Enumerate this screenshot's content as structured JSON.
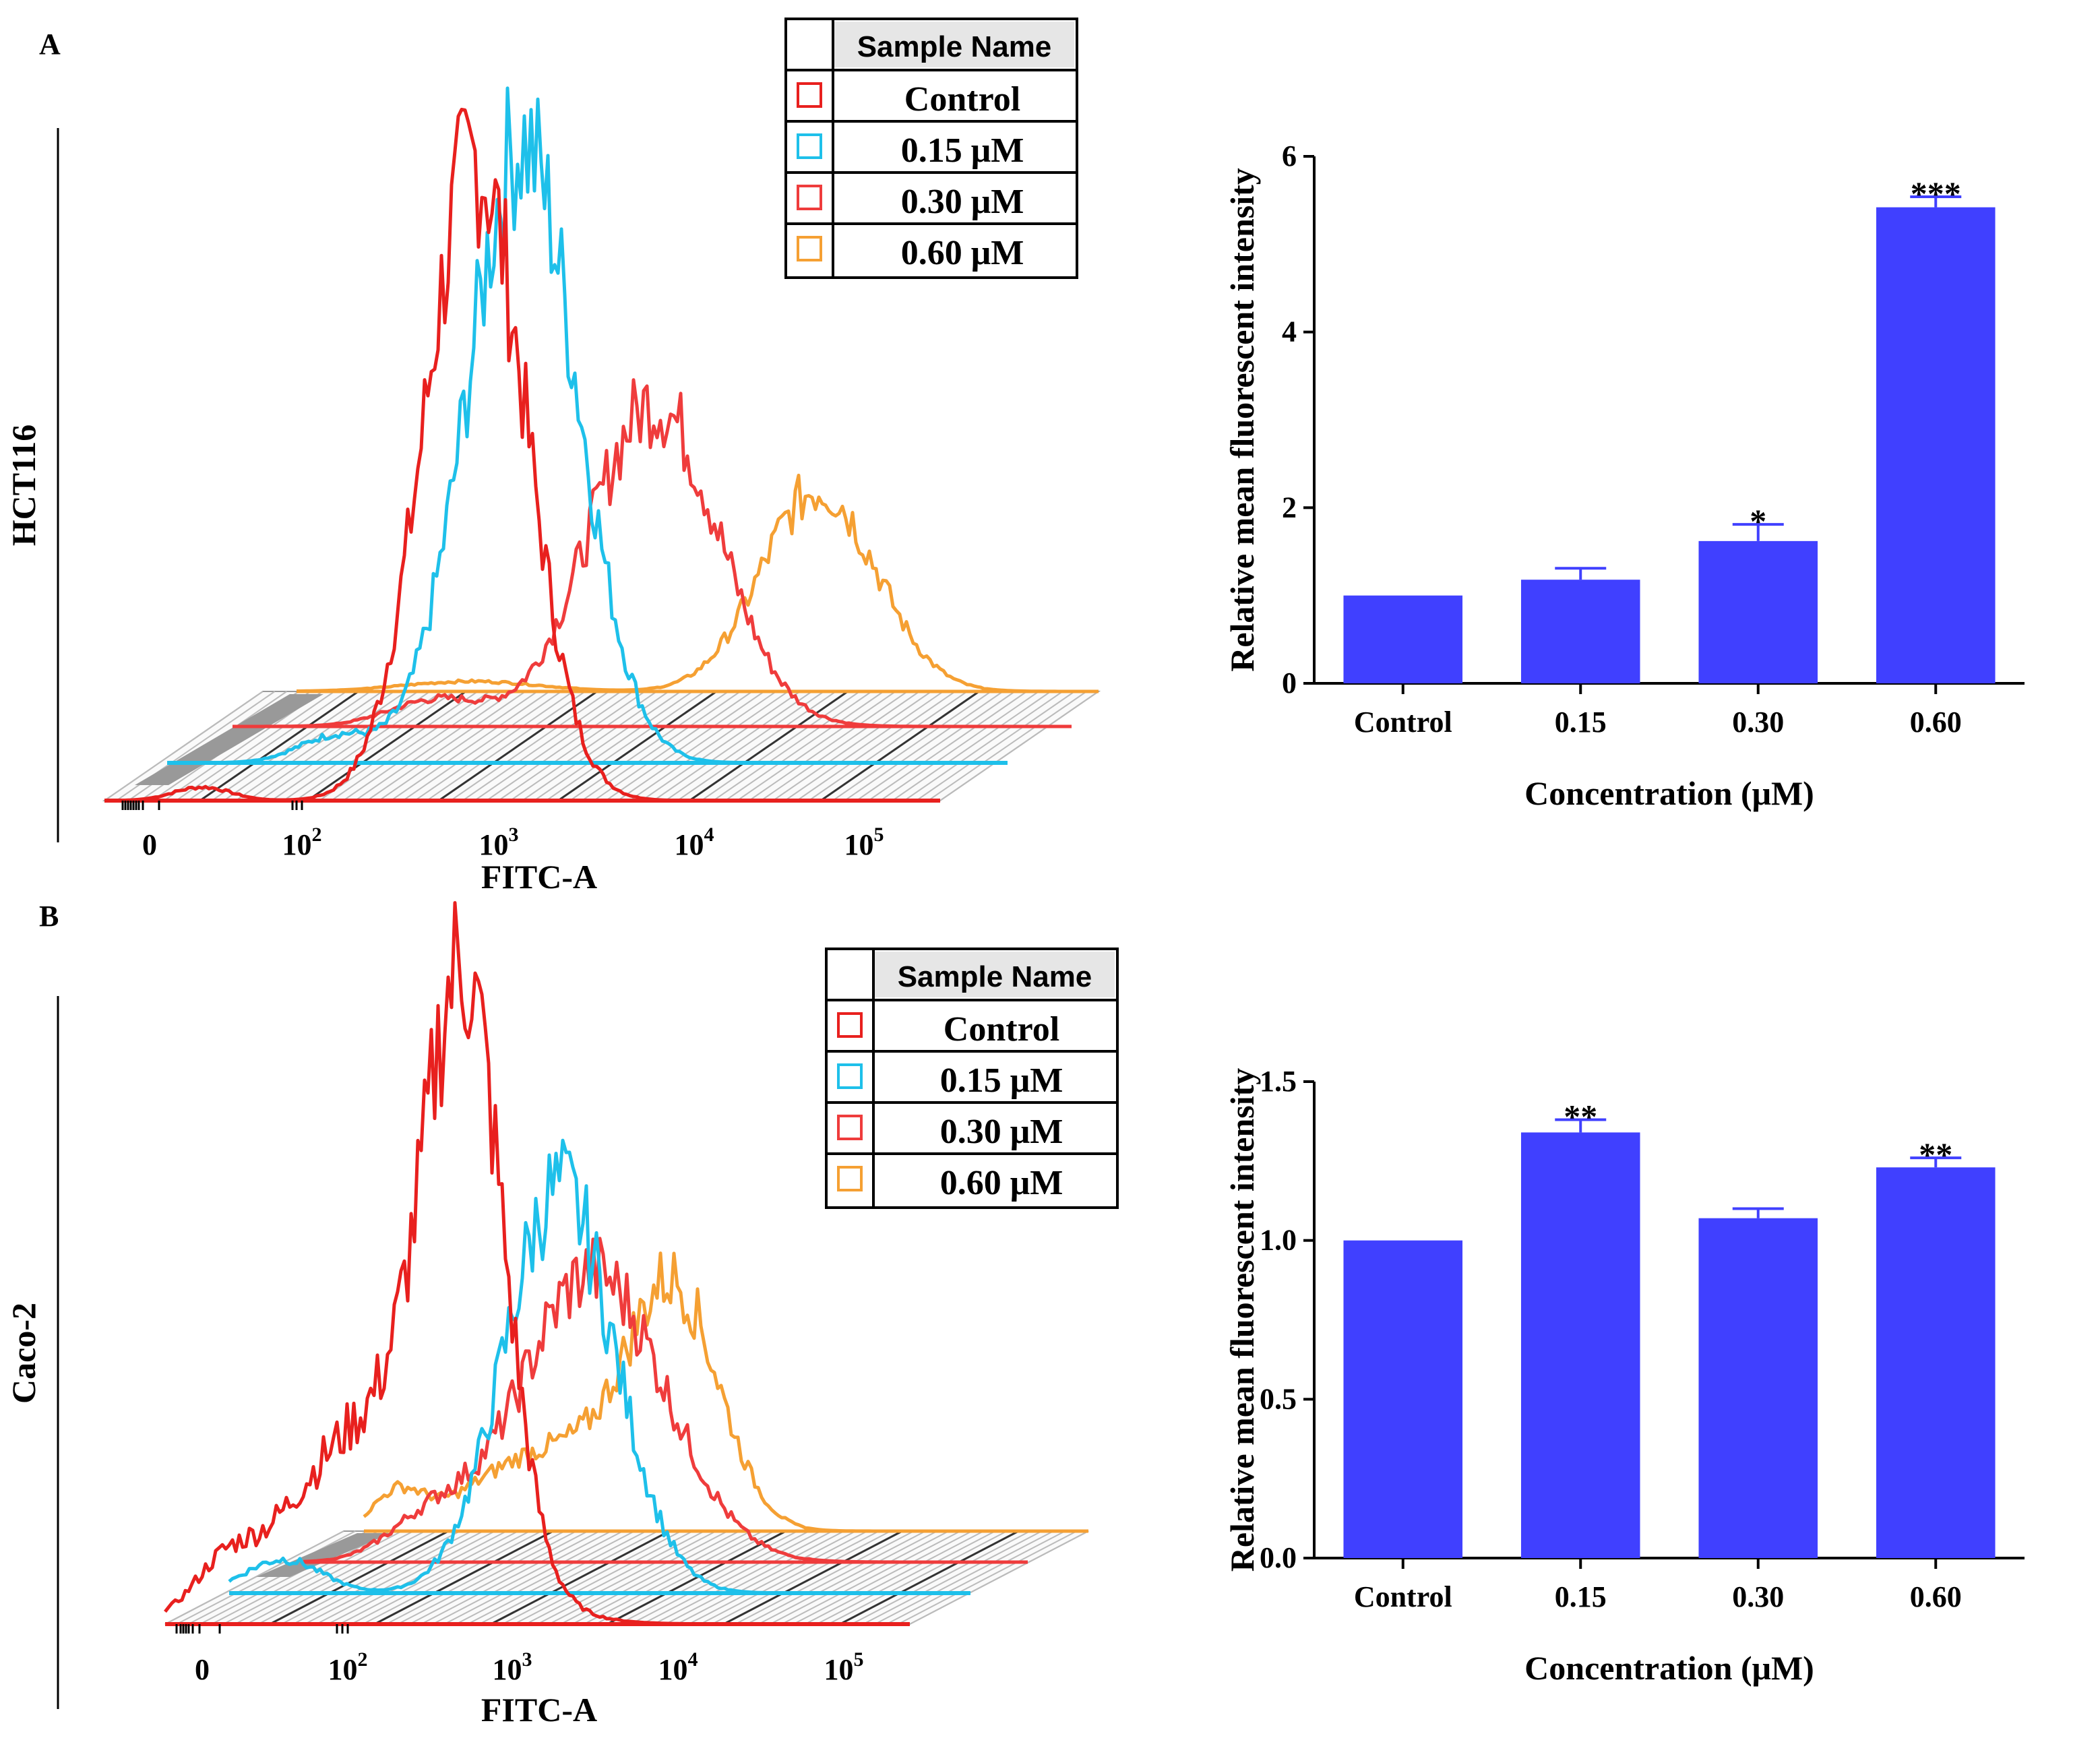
{
  "panels": [
    {
      "letter": "A",
      "cell_line": "HCT116",
      "legend": {
        "header": "Sample Name",
        "entries": [
          {
            "label": "Control",
            "color": "#e8201e"
          },
          {
            "label": "0.15 μM",
            "color": "#1ec0ea"
          },
          {
            "label": "0.30 μM",
            "color": "#ef3c3c"
          },
          {
            "label": "0.60 μM",
            "color": "#f5a033"
          }
        ]
      },
      "histogram": {
        "xlabel": "FITC-A",
        "ticks": [
          {
            "base": "0",
            "exp": ""
          },
          {
            "base": "10",
            "exp": "2"
          },
          {
            "base": "10",
            "exp": "3"
          },
          {
            "base": "10",
            "exp": "4"
          },
          {
            "base": "10",
            "exp": "5"
          }
        ]
      },
      "bar": {
        "type": "bar",
        "ylabel": "Relative mean fluorescent intensity",
        "xlabel": "Concentration (μM)",
        "categories": [
          "Control",
          "0.15",
          "0.30",
          "0.60"
        ],
        "values": [
          1.0,
          1.18,
          1.62,
          5.42
        ],
        "errors": [
          0,
          0.13,
          0.19,
          0.12
        ],
        "significance": [
          "",
          "",
          "*",
          "***"
        ],
        "ylim": [
          0,
          6
        ],
        "yticks": [
          "0",
          "2",
          "4",
          "6"
        ],
        "ytick_values": [
          0,
          2,
          4,
          6
        ],
        "color": "#4040ff"
      }
    },
    {
      "letter": "B",
      "cell_line": "Caco-2",
      "legend": {
        "header": "Sample Name",
        "entries": [
          {
            "label": "Control",
            "color": "#e8201e"
          },
          {
            "label": "0.15 μM",
            "color": "#1ec0ea"
          },
          {
            "label": "0.30 μM",
            "color": "#ef3c3c"
          },
          {
            "label": "0.60 μM",
            "color": "#f5a033"
          }
        ]
      },
      "histogram": {
        "xlabel": "FITC-A",
        "ticks": [
          {
            "base": "0",
            "exp": ""
          },
          {
            "base": "10",
            "exp": "2"
          },
          {
            "base": "10",
            "exp": "3"
          },
          {
            "base": "10",
            "exp": "4"
          },
          {
            "base": "10",
            "exp": "5"
          }
        ]
      },
      "bar": {
        "type": "bar",
        "ylabel": "Relative mean fluorescent intensity",
        "xlabel": "Concentration (μM)",
        "categories": [
          "Control",
          "0.15",
          "0.30",
          "0.60"
        ],
        "values": [
          1.0,
          1.34,
          1.07,
          1.23
        ],
        "errors": [
          0,
          0.04,
          0.03,
          0.03
        ],
        "significance": [
          "",
          "**",
          "",
          "**"
        ],
        "ylim": [
          0,
          1.5
        ],
        "yticks": [
          "0.0",
          "0.5",
          "1.0",
          "1.5"
        ],
        "ytick_values": [
          0,
          0.5,
          1.0,
          1.5
        ],
        "color": "#4040ff"
      }
    }
  ],
  "chart_data": [
    {
      "type": "bar",
      "title": "HCT116",
      "xlabel": "Concentration (μM)",
      "ylabel": "Relative mean fluorescent intensity",
      "categories": [
        "Control",
        "0.15",
        "0.30",
        "0.60"
      ],
      "values": [
        1.0,
        1.18,
        1.62,
        5.42
      ],
      "ylim": [
        0,
        6
      ]
    },
    {
      "type": "bar",
      "title": "Caco-2",
      "xlabel": "Concentration (μM)",
      "ylabel": "Relative mean fluorescent intensity",
      "categories": [
        "Control",
        "0.15",
        "0.30",
        "0.60"
      ],
      "values": [
        1.0,
        1.34,
        1.07,
        1.23
      ],
      "ylim": [
        0,
        1.5
      ]
    }
  ]
}
